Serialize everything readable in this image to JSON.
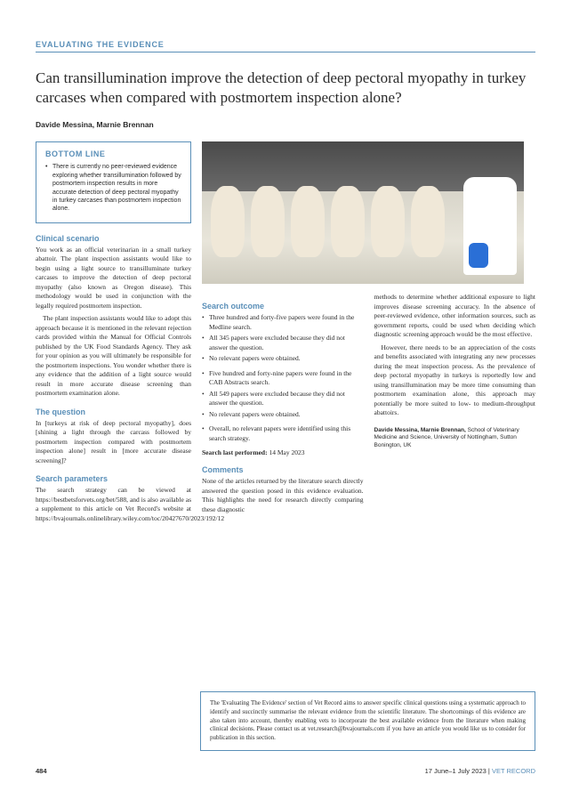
{
  "section_header": "EVALUATING THE EVIDENCE",
  "title": "Can transillumination improve the detection of deep pectoral myopathy in turkey carcases when compared with postmortem inspection alone?",
  "authors": "Davide Messina, Marnie Brennan",
  "bottom_line": {
    "heading": "BOTTOM LINE",
    "text": "There is currently no peer-reviewed evidence exploring whether transillumination followed by postmortem inspection results in more accurate detection of deep pectoral myopathy in turkey carcases than postmortem inspection alone."
  },
  "clinical_scenario": {
    "heading": "Clinical scenario",
    "p1": "You work as an official veterinarian in a small turkey abattoir. The plant inspection assistants would like to begin using a light source to transilluminate turkey carcases to improve the detection of deep pectoral myopathy (also known as Oregon disease). This methodology would be used in conjunction with the legally required postmortem inspection.",
    "p2": "The plant inspection assistants would like to adopt this approach because it is mentioned in the relevant rejection cards provided within the Manual for Official Controls published by the UK Food Standards Agency. They ask for your opinion as you will ultimately be responsible for the postmortem inspections. You wonder whether there is any evidence that the addition of a light source would result in more accurate disease screening than postmortem examination alone."
  },
  "the_question": {
    "heading": "The question",
    "text": "In [turkeys at risk of deep pectoral myopathy], does [shining a light through the carcass followed by postmortem inspection compared with postmortem inspection alone] result in [more accurate disease screening]?"
  },
  "search_parameters": {
    "heading": "Search parameters",
    "text": "The search strategy can be viewed at https://bestbetsforvets.org/bet/588, and is also available as a supplement to this article on Vet Record's website at https://bvajournals.onlinelibrary.wiley.com/toc/20427670/2023/192/12"
  },
  "search_outcome": {
    "heading": "Search outcome",
    "list1": [
      "Three hundred and forty-five papers were found in the Medline search.",
      "All 345 papers were excluded because they did not answer the question.",
      "No relevant papers were obtained."
    ],
    "list2": [
      "Five hundred and forty-nine papers were found in the CAB Abstracts search.",
      "All 549 papers were excluded because they did not answer the question.",
      "No relevant papers were obtained."
    ],
    "list3": [
      "Overall, no relevant papers were identified using this search strategy."
    ],
    "date_label": "Search last performed:",
    "date": "14 May 2023"
  },
  "comments": {
    "heading": "Comments",
    "p1": "None of the articles returned by the literature search directly answered the question posed in this evidence evaluation. This highlights the need for research directly comparing these diagnostic",
    "p2": "methods to determine whether additional exposure to light improves disease screening accuracy. In the absence of peer-reviewed evidence, other information sources, such as government reports, could be used when deciding which diagnostic screening approach would be the most effective.",
    "p3": "However, there needs to be an appreciation of the costs and benefits associated with integrating any new processes during the meat inspection process. As the prevalence of deep pectoral myopathy in turkeys is reportedly low and using transillumination may be more time consuming than postmortem examination alone, this approach may potentially be more suited to low- to medium-throughput abattoirs."
  },
  "affiliation": {
    "names": "Davide Messina, Marnie Brennan,",
    "rest": " School of Veterinary Medicine and Science, University of Nottingham, Sutton Bonington, UK"
  },
  "footer_box": "The 'Evaluating The Evidence' section of Vet Record aims to answer specific clinical questions using a systematic approach to identify and succinctly summarise the relevant evidence from the scientific literature. The shortcomings of this evidence are also taken into account, thereby enabling vets to incorporate the best available evidence from the literature when making clinical decisions. Please contact us at vet.research@bvajournals.com if you have an article you would like us to consider for publication in this section.",
  "footer": {
    "page": "484",
    "date": "17 June–1 July 2023",
    "journal": "VET RECORD"
  },
  "colors": {
    "accent": "#5a8fb8",
    "text": "#2b2b2b",
    "bg": "#ffffff"
  }
}
